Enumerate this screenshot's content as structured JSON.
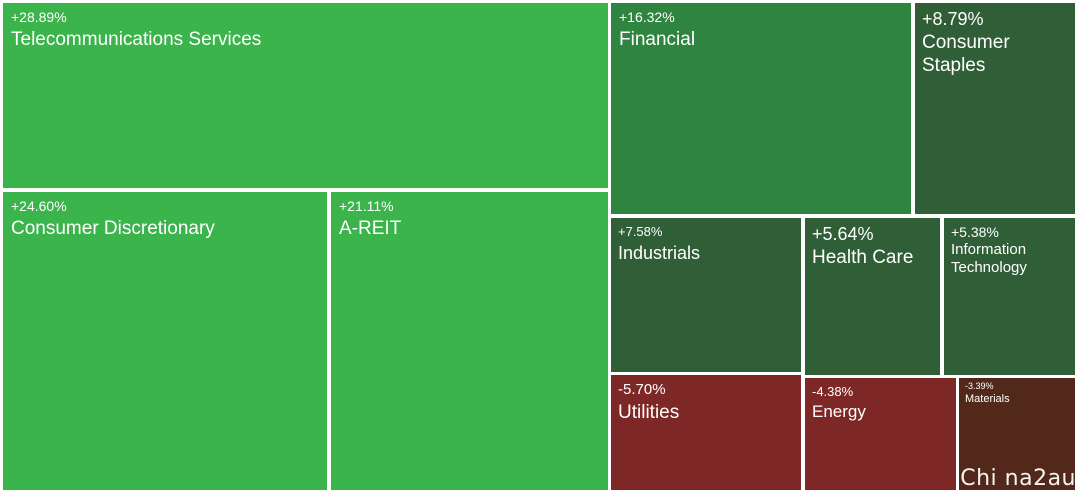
{
  "chart_data": {
    "type": "treemap",
    "colors": {
      "strong_gain": "#3bb44b",
      "mid_gain": "#2f8540",
      "low_gain": "#2f5e37",
      "loss": "#7d2826",
      "small_loss": "#52281a"
    },
    "sectors": [
      {
        "id": "telecom",
        "name": "Telecommunications Services",
        "change": "+28.89%",
        "color": "#3bb44b"
      },
      {
        "id": "cons-disc",
        "name": "Consumer Discretionary",
        "change": "+24.60%",
        "color": "#3bb44b"
      },
      {
        "id": "areit",
        "name": "A-REIT",
        "change": "+21.11%",
        "color": "#3bb44b"
      },
      {
        "id": "financial",
        "name": "Financial",
        "change": "+16.32%",
        "color": "#2f8540"
      },
      {
        "id": "cons-staples",
        "name": "Consumer Staples",
        "change": "+8.79%",
        "color": "#2f5e37"
      },
      {
        "id": "industrials",
        "name": "Industrials",
        "change": "+7.58%",
        "color": "#2f5e37"
      },
      {
        "id": "health",
        "name": "Health Care",
        "change": "+5.64%",
        "color": "#2f5e37"
      },
      {
        "id": "infotech",
        "name": "Information Technology",
        "change": "+5.38%",
        "color": "#2f5e37"
      },
      {
        "id": "utilities",
        "name": "Utilities",
        "change": "-5.70%",
        "color": "#7d2826"
      },
      {
        "id": "energy",
        "name": "Energy",
        "change": "-4.38%",
        "color": "#7d2826"
      },
      {
        "id": "materials",
        "name": "Materials",
        "change": "-3.39%",
        "color": "#52281a"
      }
    ]
  },
  "watermark": "Chi na2au"
}
